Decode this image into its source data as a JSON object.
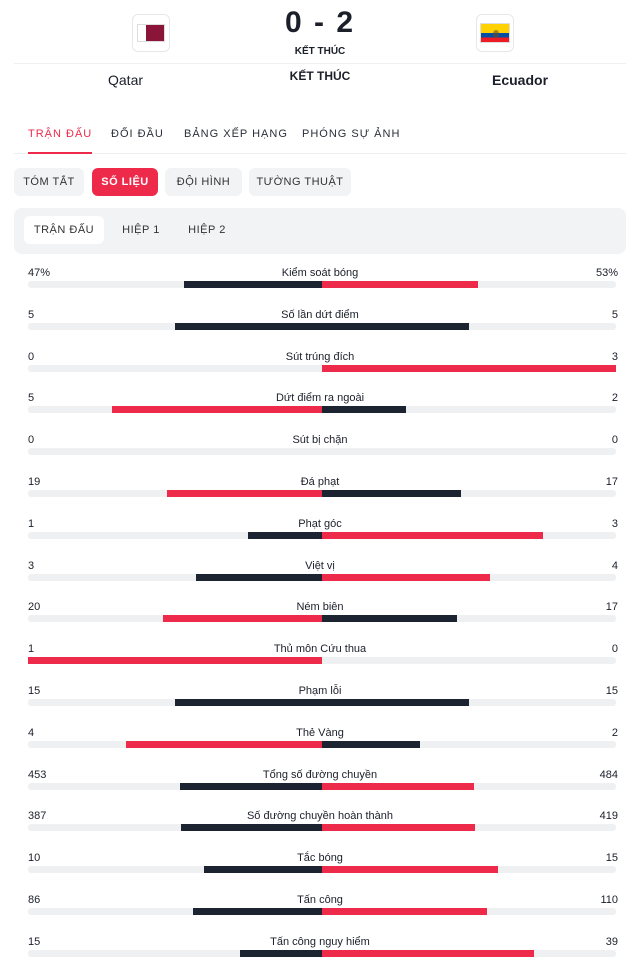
{
  "match": {
    "home_team": "Qatar",
    "away_team": "Ecuador",
    "score": "0 - 2",
    "status_small": "KẾT THÚC",
    "status_big": "KẾT THÚC"
  },
  "main_tabs": [
    "TRẬN ĐẤU",
    "ĐỐI ĐẦU",
    "BẢNG XẾP HẠNG",
    "PHÓNG SỰ ẢNH"
  ],
  "sub_tabs": [
    "TÓM TẮT",
    "SỐ LIỆU",
    "ĐỘI HÌNH",
    "TƯỜNG THUẬT"
  ],
  "period_tabs": [
    "TRẬN ĐẤU",
    "HIỆP 1",
    "HIỆP 2"
  ],
  "colors": {
    "accent": "#ee2a4b",
    "dark_bar": "#1b2430",
    "track": "#eef0f2"
  },
  "stats": [
    {
      "label": "Kiểm soát bóng",
      "home": "47%",
      "away": "53%",
      "home_val": 47,
      "away_val": 53,
      "leader": "away"
    },
    {
      "label": "Số lần dứt điểm",
      "home": "5",
      "away": "5",
      "home_val": 5,
      "away_val": 5,
      "leader": "none"
    },
    {
      "label": "Sút trúng đích",
      "home": "0",
      "away": "3",
      "home_val": 0,
      "away_val": 3,
      "leader": "away"
    },
    {
      "label": "Dứt điểm ra ngoài",
      "home": "5",
      "away": "2",
      "home_val": 5,
      "away_val": 2,
      "leader": "home"
    },
    {
      "label": "Sút bị chặn",
      "home": "0",
      "away": "0",
      "home_val": 0,
      "away_val": 0,
      "leader": "none"
    },
    {
      "label": "Đá phạt",
      "home": "19",
      "away": "17",
      "home_val": 19,
      "away_val": 17,
      "leader": "home"
    },
    {
      "label": "Phạt góc",
      "home": "1",
      "away": "3",
      "home_val": 1,
      "away_val": 3,
      "leader": "away"
    },
    {
      "label": "Việt vị",
      "home": "3",
      "away": "4",
      "home_val": 3,
      "away_val": 4,
      "leader": "away"
    },
    {
      "label": "Ném biên",
      "home": "20",
      "away": "17",
      "home_val": 20,
      "away_val": 17,
      "leader": "home"
    },
    {
      "label": "Thủ môn Cứu thua",
      "home": "1",
      "away": "0",
      "home_val": 1,
      "away_val": 0,
      "leader": "home"
    },
    {
      "label": "Phạm lỗi",
      "home": "15",
      "away": "15",
      "home_val": 15,
      "away_val": 15,
      "leader": "none"
    },
    {
      "label": "Thẻ Vàng",
      "home": "4",
      "away": "2",
      "home_val": 4,
      "away_val": 2,
      "leader": "home"
    },
    {
      "label": "Tổng số đường chuyền",
      "home": "453",
      "away": "484",
      "home_val": 453,
      "away_val": 484,
      "leader": "away"
    },
    {
      "label": "Số đường chuyền hoàn thành",
      "home": "387",
      "away": "419",
      "home_val": 387,
      "away_val": 419,
      "leader": "away"
    },
    {
      "label": "Tắc bóng",
      "home": "10",
      "away": "15",
      "home_val": 10,
      "away_val": 15,
      "leader": "away"
    },
    {
      "label": "Tấn công",
      "home": "86",
      "away": "110",
      "home_val": 86,
      "away_val": 110,
      "leader": "away"
    },
    {
      "label": "Tấn công nguy hiểm",
      "home": "15",
      "away": "39",
      "home_val": 15,
      "away_val": 39,
      "leader": "away"
    }
  ]
}
